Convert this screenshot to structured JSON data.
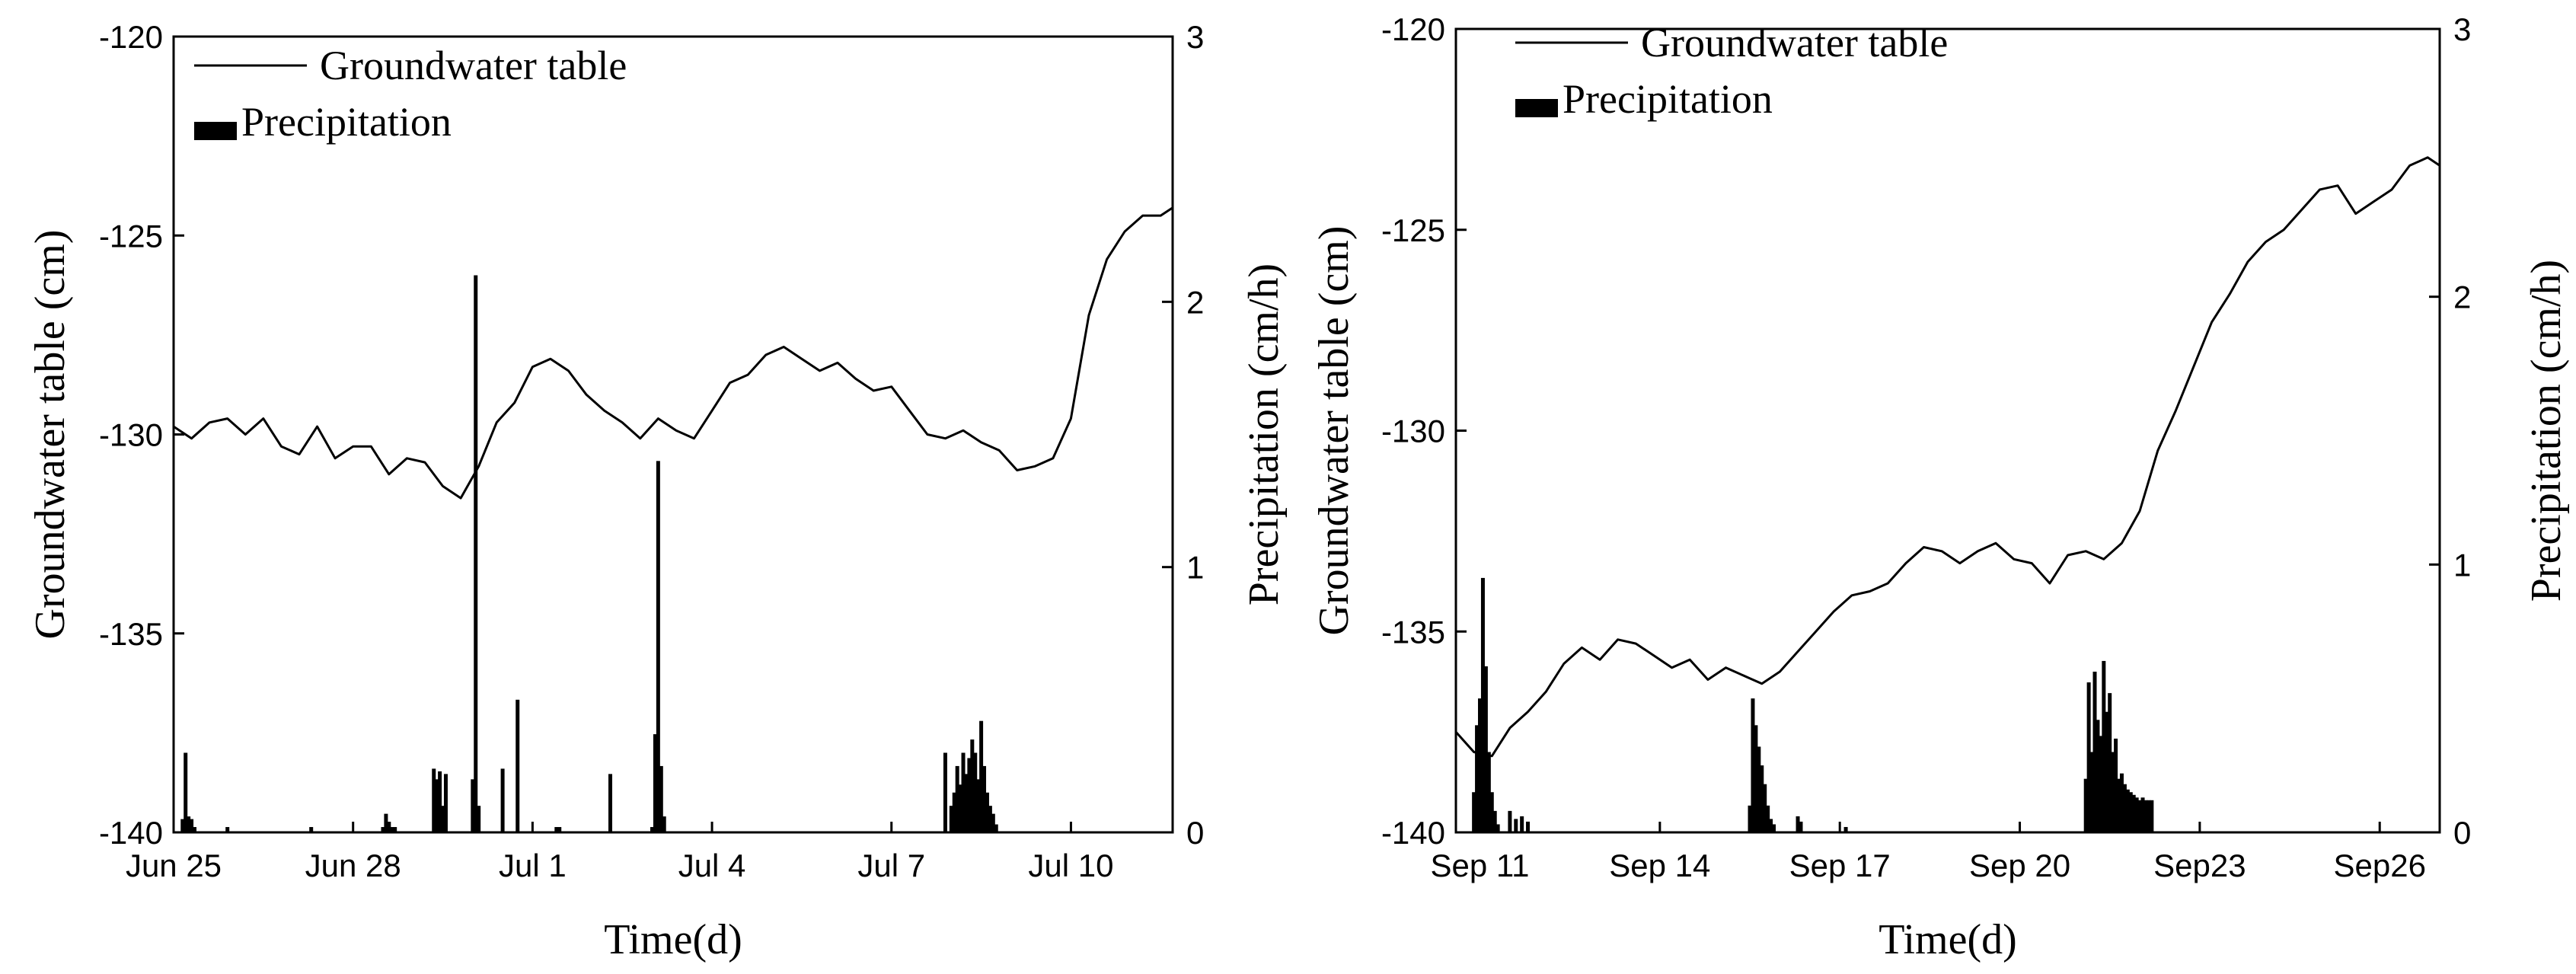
{
  "chart_data": [
    {
      "type": "line",
      "title": "",
      "xlabel": "Time(d)",
      "ylabel": "Groundwater table (cm)",
      "y2label": "Precipitation (cm/h)",
      "legend": {
        "placement": "top-left",
        "entries": [
          "Groundwater table",
          "Precipitation"
        ]
      },
      "grid": false,
      "xlim": [
        0,
        16.7
      ],
      "ylim": [
        -140,
        -120
      ],
      "y2lim": [
        0,
        3
      ],
      "x_ticks": [
        {
          "x": 0,
          "label": "Jun 25"
        },
        {
          "x": 3,
          "label": "Jun 28"
        },
        {
          "x": 6,
          "label": "Jul 1"
        },
        {
          "x": 9,
          "label": "Jul 4"
        },
        {
          "x": 12,
          "label": "Jul 7"
        },
        {
          "x": 15,
          "label": "Jul 10"
        }
      ],
      "y_ticks": [
        -140,
        -135,
        -130,
        -125,
        -120
      ],
      "y2_ticks": [
        0,
        1,
        2,
        3
      ],
      "series": [
        {
          "name": "Groundwater table",
          "kind": "line",
          "axis": "left",
          "x": [
            0.0,
            0.3,
            0.6,
            0.9,
            1.2,
            1.5,
            1.8,
            2.1,
            2.4,
            2.7,
            3.0,
            3.3,
            3.6,
            3.9,
            4.2,
            4.5,
            4.8,
            5.1,
            5.4,
            5.7,
            6.0,
            6.3,
            6.6,
            6.9,
            7.2,
            7.5,
            7.8,
            8.1,
            8.4,
            8.7,
            9.0,
            9.3,
            9.6,
            9.9,
            10.2,
            10.5,
            10.8,
            11.1,
            11.4,
            11.7,
            12.0,
            12.3,
            12.6,
            12.9,
            13.2,
            13.5,
            13.8,
            14.1,
            14.4,
            14.7,
            15.0,
            15.3,
            15.6,
            15.9,
            16.2,
            16.5,
            16.7
          ],
          "values": [
            -129.8,
            -130.1,
            -129.7,
            -129.6,
            -130.0,
            -129.6,
            -130.3,
            -130.5,
            -129.8,
            -130.6,
            -130.3,
            -130.3,
            -131.0,
            -130.6,
            -130.7,
            -131.3,
            -131.6,
            -130.8,
            -129.7,
            -129.2,
            -128.3,
            -128.1,
            -128.4,
            -129.0,
            -129.4,
            -129.7,
            -130.1,
            -129.6,
            -129.9,
            -130.1,
            -129.4,
            -128.7,
            -128.5,
            -128.0,
            -127.8,
            -128.1,
            -128.4,
            -128.2,
            -128.6,
            -128.9,
            -128.8,
            -129.4,
            -130.0,
            -130.1,
            -129.9,
            -130.2,
            -130.4,
            -130.9,
            -130.8,
            -130.6,
            -129.6,
            -127.0,
            -125.6,
            -124.9,
            -124.5,
            -124.5,
            -124.3
          ]
        },
        {
          "name": "Precipitation",
          "kind": "bar",
          "axis": "right",
          "x": [
            0.15,
            0.2,
            0.25,
            0.3,
            0.35,
            0.9,
            2.3,
            3.5,
            3.55,
            3.6,
            3.65,
            3.7,
            4.35,
            4.4,
            4.45,
            4.5,
            4.55,
            5.0,
            5.05,
            5.1,
            5.5,
            5.75,
            6.4,
            6.45,
            7.3,
            8.0,
            8.05,
            8.1,
            8.15,
            8.2,
            12.9,
            13.0,
            13.05,
            13.1,
            13.15,
            13.2,
            13.25,
            13.3,
            13.35,
            13.4,
            13.45,
            13.5,
            13.55,
            13.6,
            13.65,
            13.7,
            13.75
          ],
          "values": [
            0.05,
            0.3,
            0.06,
            0.05,
            0.02,
            0.02,
            0.02,
            0.02,
            0.07,
            0.04,
            0.02,
            0.02,
            0.24,
            0.2,
            0.23,
            0.1,
            0.22,
            0.2,
            2.1,
            0.1,
            0.24,
            0.5,
            0.02,
            0.02,
            0.22,
            0.02,
            0.37,
            1.4,
            0.25,
            0.06,
            0.3,
            0.1,
            0.15,
            0.25,
            0.18,
            0.3,
            0.22,
            0.28,
            0.35,
            0.3,
            0.2,
            0.42,
            0.25,
            0.15,
            0.1,
            0.07,
            0.03
          ]
        }
      ]
    },
    {
      "type": "line",
      "title": "",
      "xlabel": "Time(d)",
      "ylabel": "Groundwater table (cm)",
      "y2label": "Precipitation (cm/h)",
      "legend": {
        "placement": "top-left",
        "entries": [
          "Groundwater table",
          "Precipitation"
        ]
      },
      "grid": false,
      "xlim": [
        0,
        16.4
      ],
      "ylim": [
        -140,
        -120
      ],
      "y2lim": [
        0,
        3
      ],
      "x_ticks": [
        {
          "x": 0.4,
          "label": "Sep 11"
        },
        {
          "x": 3.4,
          "label": "Sep 14"
        },
        {
          "x": 6.4,
          "label": "Sep 17"
        },
        {
          "x": 9.4,
          "label": "Sep 20"
        },
        {
          "x": 12.4,
          "label": "Sep23"
        },
        {
          "x": 15.4,
          "label": "Sep26"
        }
      ],
      "y_ticks": [
        -140,
        -135,
        -130,
        -125,
        -120
      ],
      "y2_ticks": [
        0,
        1,
        2,
        3
      ],
      "series": [
        {
          "name": "Groundwater table",
          "kind": "line",
          "axis": "left",
          "x": [
            0.0,
            0.3,
            0.6,
            0.9,
            1.2,
            1.5,
            1.8,
            2.1,
            2.4,
            2.7,
            3.0,
            3.3,
            3.6,
            3.9,
            4.2,
            4.5,
            4.8,
            5.1,
            5.4,
            5.7,
            6.0,
            6.3,
            6.6,
            6.9,
            7.2,
            7.5,
            7.8,
            8.1,
            8.4,
            8.7,
            9.0,
            9.3,
            9.6,
            9.9,
            10.2,
            10.5,
            10.8,
            11.1,
            11.4,
            11.7,
            12.0,
            12.3,
            12.6,
            12.9,
            13.2,
            13.5,
            13.8,
            14.1,
            14.4,
            14.7,
            15.0,
            15.3,
            15.6,
            15.9,
            16.2,
            16.4
          ],
          "values": [
            -137.5,
            -138.0,
            -138.1,
            -137.4,
            -137.0,
            -136.5,
            -135.8,
            -135.4,
            -135.7,
            -135.2,
            -135.3,
            -135.6,
            -135.9,
            -135.7,
            -136.2,
            -135.9,
            -136.1,
            -136.3,
            -136.0,
            -135.5,
            -135.0,
            -134.5,
            -134.1,
            -134.0,
            -133.8,
            -133.3,
            -132.9,
            -133.0,
            -133.3,
            -133.0,
            -132.8,
            -133.2,
            -133.3,
            -133.8,
            -133.1,
            -133.0,
            -133.2,
            -132.8,
            -132.0,
            -130.5,
            -129.5,
            -128.4,
            -127.3,
            -126.6,
            -125.8,
            -125.3,
            -125.0,
            -124.5,
            -124.0,
            -123.9,
            -124.6,
            -124.3,
            -124.0,
            -123.4,
            -123.2,
            -123.4
          ]
        },
        {
          "name": "Precipitation",
          "kind": "bar",
          "axis": "right",
          "x": [
            0.3,
            0.35,
            0.4,
            0.45,
            0.5,
            0.55,
            0.6,
            0.65,
            0.7,
            0.9,
            1.0,
            1.1,
            1.2,
            4.9,
            4.95,
            5.0,
            5.05,
            5.1,
            5.15,
            5.2,
            5.25,
            5.3,
            5.7,
            5.75,
            6.5,
            10.5,
            10.55,
            10.6,
            10.65,
            10.7,
            10.75,
            10.8,
            10.85,
            10.9,
            10.95,
            11.0,
            11.05,
            11.1,
            11.15,
            11.2,
            11.25,
            11.3,
            11.35,
            11.4,
            11.45,
            11.5,
            11.55,
            11.6
          ],
          "values": [
            0.15,
            0.4,
            0.5,
            0.95,
            0.62,
            0.3,
            0.15,
            0.08,
            0.03,
            0.08,
            0.05,
            0.06,
            0.04,
            0.1,
            0.5,
            0.4,
            0.32,
            0.25,
            0.18,
            0.1,
            0.05,
            0.03,
            0.06,
            0.04,
            0.02,
            0.2,
            0.56,
            0.3,
            0.6,
            0.42,
            0.36,
            0.64,
            0.45,
            0.52,
            0.3,
            0.35,
            0.2,
            0.22,
            0.18,
            0.16,
            0.15,
            0.14,
            0.13,
            0.12,
            0.13,
            0.12,
            0.12,
            0.12
          ]
        }
      ]
    }
  ]
}
